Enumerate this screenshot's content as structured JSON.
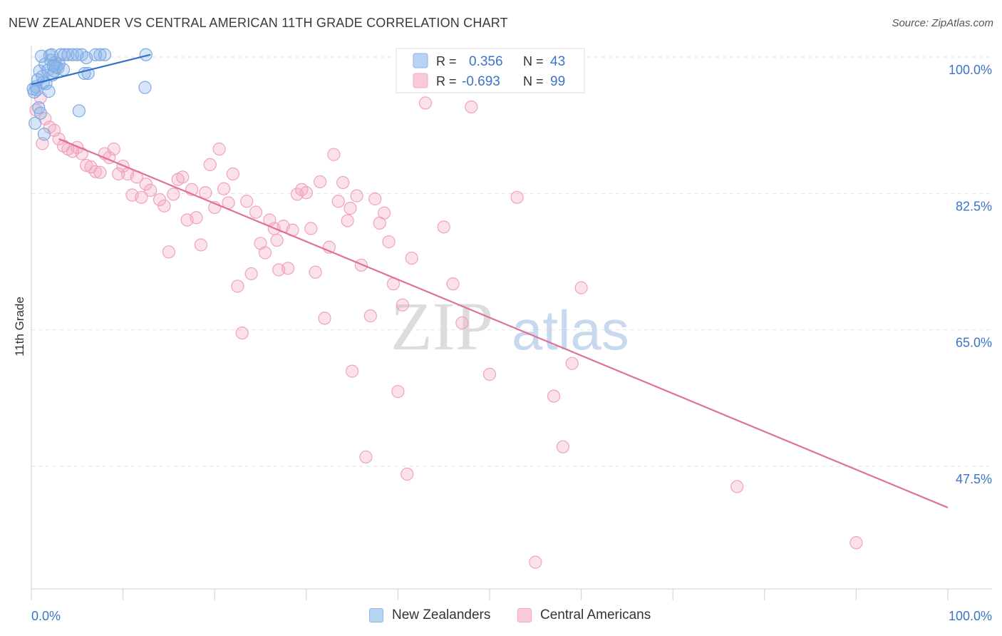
{
  "title": "NEW ZEALANDER VS CENTRAL AMERICAN 11TH GRADE CORRELATION CHART",
  "source": "Source: ZipAtlas.com",
  "watermark": {
    "zip": "ZIP",
    "atlas": "atlas"
  },
  "legend_box": {
    "rows": [
      {
        "r_label": "R =",
        "r_value": "0.356",
        "n_label": "N =",
        "n_value": "43"
      },
      {
        "r_label": "R =",
        "r_value": "-0.693",
        "n_label": "N =",
        "n_value": "99"
      }
    ]
  },
  "legend_bottom": [
    "New Zealanders",
    "Central Americans"
  ],
  "chart_data": {
    "type": "scatter",
    "title": "NEW ZEALANDER VS CENTRAL AMERICAN 11TH GRADE CORRELATION CHART",
    "xlabel": "",
    "ylabel": "11th Grade",
    "xlim": [
      0,
      100
    ],
    "ylim": [
      30,
      101.5
    ],
    "x_tick_labels": [
      "0.0%",
      "100.0%"
    ],
    "y_tick_labels": [
      "100.0%",
      "82.5%",
      "65.0%",
      "47.5%"
    ],
    "y_ticks": [
      100.0,
      82.5,
      65.0,
      47.5
    ],
    "grid": true,
    "legend_placement": "top-center",
    "colors": {
      "New Zealanders": "#8ab4ea",
      "Central Americans": "#f4a8c0",
      "nz_line": "#2f72c8",
      "ca_line": "#e0709a",
      "tick_label": "#3b74c6"
    },
    "series": [
      {
        "name": "New Zealanders",
        "r": 0.356,
        "n": 43,
        "trend": {
          "x": [
            0.0,
            13.0
          ],
          "y": [
            96.5,
            100.3
          ]
        },
        "points": [
          [
            0.3,
            95.5
          ],
          [
            0.5,
            96.2
          ],
          [
            0.6,
            95.8
          ],
          [
            0.8,
            93.5
          ],
          [
            1.0,
            92.8
          ],
          [
            0.4,
            91.5
          ],
          [
            0.9,
            98.2
          ],
          [
            1.2,
            97.5
          ],
          [
            1.5,
            99.1
          ],
          [
            1.8,
            98.3
          ],
          [
            2.0,
            100.2
          ],
          [
            2.3,
            97.7
          ],
          [
            2.6,
            99.3
          ],
          [
            2.9,
            98.6
          ],
          [
            1.3,
            96.7
          ],
          [
            1.9,
            95.6
          ],
          [
            2.1,
            99.6
          ],
          [
            2.5,
            98.2
          ],
          [
            3.0,
            99.1
          ],
          [
            3.5,
            98.4
          ],
          [
            2.2,
            100.3
          ],
          [
            2.7,
            98.7
          ],
          [
            3.2,
            100.3
          ],
          [
            3.6,
            100.3
          ],
          [
            4.0,
            100.3
          ],
          [
            4.5,
            100.3
          ],
          [
            5.0,
            100.3
          ],
          [
            5.5,
            100.3
          ],
          [
            6.0,
            99.9
          ],
          [
            5.8,
            97.9
          ],
          [
            6.2,
            97.9
          ],
          [
            7.0,
            100.3
          ],
          [
            7.5,
            100.3
          ],
          [
            8.0,
            100.3
          ],
          [
            12.5,
            100.3
          ],
          [
            12.4,
            96.1
          ],
          [
            5.2,
            93.1
          ],
          [
            1.4,
            90.1
          ],
          [
            0.7,
            97.1
          ],
          [
            1.6,
            96.6
          ],
          [
            0.2,
            95.9
          ],
          [
            1.1,
            100.1
          ],
          [
            2.4,
            98.9
          ]
        ]
      },
      {
        "name": "Central Americans",
        "r": -0.693,
        "n": 99,
        "trend": {
          "x": [
            3.0,
            100.0
          ],
          "y": [
            89.5,
            42.2
          ]
        },
        "points": [
          [
            0.5,
            93.2
          ],
          [
            1.0,
            94.8
          ],
          [
            1.5,
            92.1
          ],
          [
            2.0,
            91.0
          ],
          [
            1.2,
            88.9
          ],
          [
            2.5,
            90.6
          ],
          [
            3.0,
            89.5
          ],
          [
            3.5,
            88.6
          ],
          [
            4.0,
            88.2
          ],
          [
            4.5,
            87.9
          ],
          [
            5.0,
            88.4
          ],
          [
            5.5,
            87.6
          ],
          [
            6.0,
            86.1
          ],
          [
            6.5,
            85.9
          ],
          [
            7.0,
            85.3
          ],
          [
            8.0,
            87.6
          ],
          [
            8.5,
            87.1
          ],
          [
            9.0,
            88.2
          ],
          [
            9.5,
            85.0
          ],
          [
            10.0,
            86.0
          ],
          [
            10.5,
            85.0
          ],
          [
            11.0,
            82.3
          ],
          [
            12.0,
            82.0
          ],
          [
            12.5,
            83.7
          ],
          [
            13.0,
            82.9
          ],
          [
            14.0,
            81.7
          ],
          [
            14.5,
            80.9
          ],
          [
            15.0,
            75.0
          ],
          [
            15.5,
            82.4
          ],
          [
            16.0,
            84.3
          ],
          [
            16.5,
            84.6
          ],
          [
            17.0,
            79.1
          ],
          [
            17.5,
            83.0
          ],
          [
            18.0,
            79.4
          ],
          [
            18.5,
            75.9
          ],
          [
            19.0,
            82.6
          ],
          [
            19.5,
            86.2
          ],
          [
            20.0,
            80.7
          ],
          [
            20.5,
            88.2
          ],
          [
            21.0,
            83.1
          ],
          [
            21.5,
            81.3
          ],
          [
            22.0,
            85.0
          ],
          [
            22.5,
            70.6
          ],
          [
            23.0,
            64.6
          ],
          [
            23.5,
            81.5
          ],
          [
            24.0,
            72.2
          ],
          [
            24.5,
            80.1
          ],
          [
            25.0,
            76.1
          ],
          [
            25.5,
            74.9
          ],
          [
            26.0,
            79.1
          ],
          [
            26.5,
            78.0
          ],
          [
            27.0,
            72.7
          ],
          [
            27.5,
            78.3
          ],
          [
            28.0,
            72.9
          ],
          [
            28.5,
            77.8
          ],
          [
            29.0,
            82.4
          ],
          [
            29.5,
            83.0
          ],
          [
            30.0,
            82.6
          ],
          [
            30.5,
            78.0
          ],
          [
            31.0,
            72.4
          ],
          [
            31.5,
            84.0
          ],
          [
            32.0,
            66.5
          ],
          [
            32.5,
            75.6
          ],
          [
            33.0,
            87.5
          ],
          [
            33.5,
            81.5
          ],
          [
            34.0,
            83.9
          ],
          [
            34.5,
            79.0
          ],
          [
            35.0,
            59.7
          ],
          [
            35.5,
            82.2
          ],
          [
            36.0,
            73.3
          ],
          [
            36.5,
            48.7
          ],
          [
            37.0,
            66.8
          ],
          [
            37.5,
            81.8
          ],
          [
            38.0,
            78.7
          ],
          [
            38.5,
            80.0
          ],
          [
            39.0,
            76.3
          ],
          [
            39.5,
            70.9
          ],
          [
            40.0,
            57.1
          ],
          [
            40.5,
            68.2
          ],
          [
            41.0,
            46.5
          ],
          [
            41.5,
            74.2
          ],
          [
            43.0,
            94.1
          ],
          [
            45.0,
            78.2
          ],
          [
            46.0,
            70.9
          ],
          [
            47.0,
            65.9
          ],
          [
            48.0,
            93.6
          ],
          [
            50.0,
            59.3
          ],
          [
            53.0,
            82.0
          ],
          [
            55.0,
            35.2
          ],
          [
            57.0,
            56.5
          ],
          [
            58.0,
            50.0
          ],
          [
            59.0,
            60.7
          ],
          [
            60.0,
            70.4
          ],
          [
            77.0,
            44.9
          ],
          [
            90.0,
            37.7
          ],
          [
            7.5,
            85.2
          ],
          [
            11.5,
            84.6
          ],
          [
            26.8,
            76.5
          ],
          [
            34.8,
            80.6
          ]
        ]
      }
    ]
  }
}
